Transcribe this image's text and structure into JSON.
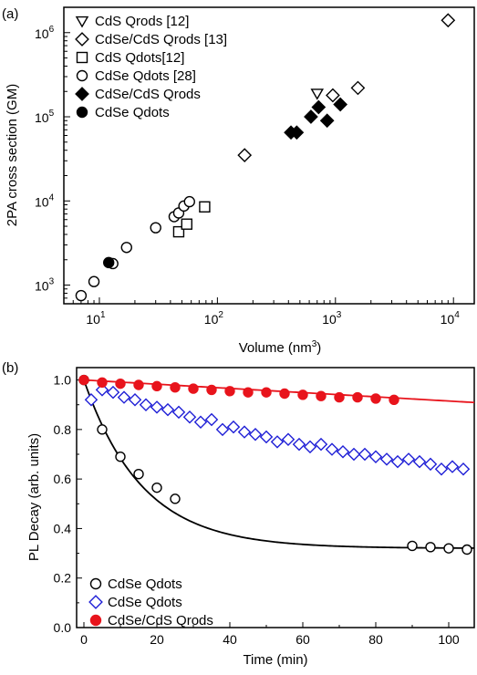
{
  "chart_data": [
    {
      "panel_label": "(a)",
      "type": "scatter",
      "xlabel": "Volume (nm³)",
      "ylabel": "2PA cross section (GM)",
      "xscale": "log",
      "yscale": "log",
      "xlim": [
        5,
        15000
      ],
      "ylim": [
        600,
        2000000
      ],
      "x_tick_labels": [
        "10",
        "10",
        "10",
        "10"
      ],
      "x_tick_exponents": [
        "1",
        "2",
        "3",
        "4"
      ],
      "y_tick_labels": [
        "10",
        "10",
        "10",
        "10"
      ],
      "y_tick_exponents": [
        "3",
        "4",
        "5",
        "6"
      ],
      "legend_position": "top-left",
      "series": [
        {
          "name": "CdS Qrods [12]",
          "marker": "triangle-down-open",
          "color": "#000000",
          "x": [
            700
          ],
          "y": [
            190000
          ]
        },
        {
          "name": "CdSe/CdS Qrods [13]",
          "marker": "diamond-open",
          "color": "#000000",
          "x": [
            170,
            950,
            1550,
            9000
          ],
          "y": [
            35000,
            180000,
            220000,
            1400000
          ]
        },
        {
          "name": "CdS Qdots[12]",
          "marker": "square-open",
          "color": "#000000",
          "x": [
            47,
            55,
            78
          ],
          "y": [
            4300,
            5300,
            8500
          ]
        },
        {
          "name": "CdSe Qdots [28]",
          "marker": "circle-open",
          "color": "#000000",
          "x": [
            7,
            9,
            13,
            17,
            30,
            43,
            47,
            52,
            58
          ],
          "y": [
            750,
            1100,
            1800,
            2800,
            4800,
            6500,
            7200,
            8700,
            9800
          ]
        },
        {
          "name": "CdSe/CdS Qrods",
          "marker": "diamond-filled",
          "color": "#000000",
          "x": [
            420,
            470,
            620,
            720,
            850,
            1100
          ],
          "y": [
            65000,
            65000,
            100000,
            130000,
            90000,
            140000
          ]
        },
        {
          "name": "CdSe Qdots",
          "marker": "circle-filled",
          "color": "#000000",
          "x": [
            12
          ],
          "y": [
            1850
          ]
        }
      ]
    },
    {
      "panel_label": "(b)",
      "type": "line",
      "xlabel": "Time (min)",
      "ylabel": "PL Decay (arb. units)",
      "xlim": [
        -2,
        107
      ],
      "ylim": [
        0.0,
        1.05
      ],
      "x_ticks": [
        0,
        20,
        40,
        60,
        80,
        100
      ],
      "y_ticks": [
        0.0,
        0.2,
        0.4,
        0.6,
        0.8,
        1.0
      ],
      "legend_position": "bottom-left",
      "series": [
        {
          "name": "CdSe Qdots",
          "marker": "circle-open",
          "color": "#000000",
          "x": [
            0,
            5,
            10,
            15,
            20,
            25,
            90,
            95,
            100,
            105
          ],
          "y": [
            1.0,
            0.8,
            0.69,
            0.62,
            0.565,
            0.52,
            0.33,
            0.325,
            0.32,
            0.315
          ]
        },
        {
          "name": "CdSe Qdots",
          "marker": "diamond-open",
          "color": "#1f1fd6",
          "x": [
            2,
            5,
            8,
            11,
            14,
            17,
            20,
            23,
            26,
            29,
            32,
            35,
            38,
            41,
            44,
            47,
            50,
            53,
            56,
            59,
            62,
            65,
            68,
            71,
            74,
            77,
            80,
            83,
            86,
            89,
            92,
            95,
            98,
            101,
            104
          ],
          "y": [
            0.92,
            0.96,
            0.95,
            0.93,
            0.92,
            0.9,
            0.89,
            0.88,
            0.87,
            0.85,
            0.83,
            0.84,
            0.8,
            0.81,
            0.79,
            0.78,
            0.77,
            0.75,
            0.76,
            0.74,
            0.73,
            0.74,
            0.72,
            0.71,
            0.7,
            0.7,
            0.69,
            0.68,
            0.67,
            0.68,
            0.67,
            0.66,
            0.64,
            0.65,
            0.64
          ]
        },
        {
          "name": "CdSe/CdS Qrods",
          "marker": "circle-filled",
          "color": "#e8141c",
          "x": [
            0,
            5,
            10,
            15,
            20,
            25,
            30,
            35,
            40,
            45,
            50,
            55,
            60,
            65,
            70,
            75,
            80,
            85
          ],
          "y": [
            1.0,
            0.99,
            0.985,
            0.98,
            0.975,
            0.97,
            0.965,
            0.96,
            0.955,
            0.95,
            0.95,
            0.945,
            0.94,
            0.935,
            0.93,
            0.93,
            0.925,
            0.92
          ]
        }
      ],
      "fits": [
        {
          "color": "#000000",
          "form": "exp_decay",
          "a": 0.68,
          "tau": 16,
          "c": 0.32
        },
        {
          "color": "#e8141c",
          "form": "linear",
          "y0": 1.0,
          "slope": -0.00085
        }
      ]
    }
  ]
}
